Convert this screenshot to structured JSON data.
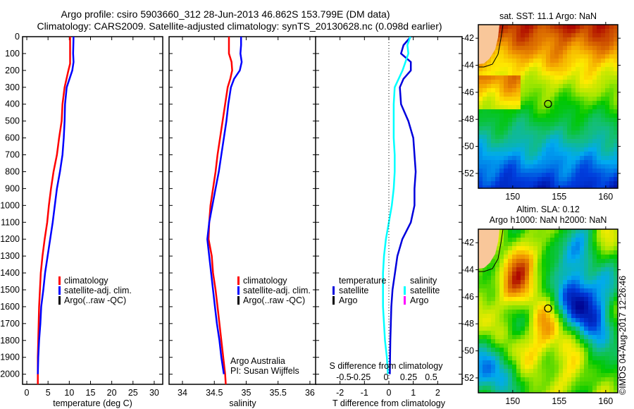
{
  "header": {
    "title_line1": "Argo profile: csiro 5903660_312 28-Jun-2013 46.862S 153.799E (DM data)",
    "title_line2": "Climatology: CARS2009. Satellite-adjusted climatology: synTS_20130628.nc (0.098d earlier)"
  },
  "colors": {
    "climatology": "#ff0000",
    "satellite": "#0000ff",
    "argo": "#000000",
    "temp_diff": "#0000dd",
    "sal_diff": "#00ffff",
    "sal_argo": "#ff00ff",
    "land": "#f9c79a"
  },
  "credits": {
    "org": "Argo Australia",
    "pi": "PI: Susan Wijffels",
    "stamp": "©IMOS 04-Aug-2017 12:26:46"
  },
  "chart_data": [
    {
      "type": "line",
      "name": "temperature-profile",
      "xlabel": "temperature (deg C)",
      "ylabel": "",
      "xlim": [
        -1,
        32
      ],
      "ylim": [
        2060,
        0
      ],
      "xticks": [
        0,
        5,
        10,
        15,
        20,
        25,
        30
      ],
      "yticks": [
        0,
        100,
        200,
        300,
        400,
        500,
        600,
        700,
        800,
        900,
        1000,
        1100,
        1200,
        1300,
        1400,
        1500,
        1600,
        1700,
        1800,
        1900,
        2000
      ],
      "legend": [
        "climatology",
        "satellite-adj. clim.",
        "Argo(..raw -QC)"
      ],
      "legend_placement": "center",
      "series": [
        {
          "name": "climatology",
          "color": "#ff0000",
          "depth": [
            0,
            100,
            160,
            200,
            300,
            400,
            500,
            600,
            700,
            800,
            900,
            1000,
            1100,
            1200,
            1300,
            1400,
            1500,
            1600,
            1700,
            1800,
            1900,
            2000,
            2060
          ],
          "values": [
            10.2,
            10.2,
            10.2,
            9.8,
            8.9,
            8.4,
            8.2,
            7.6,
            7.1,
            6.3,
            5.7,
            5.2,
            4.8,
            4.2,
            3.7,
            3.3,
            3.1,
            2.9,
            2.8,
            2.7,
            2.6,
            2.6,
            2.6
          ]
        },
        {
          "name": "satellite-adj. clim.",
          "color": "#0000ff",
          "depth": [
            0,
            100,
            150,
            200,
            300,
            400,
            500,
            600,
            700,
            800,
            900,
            1000,
            1100,
            1200,
            1300,
            1400,
            1500,
            1600,
            1700,
            1800,
            1900,
            2000
          ],
          "values": [
            11.0,
            10.9,
            11.0,
            10.7,
            9.4,
            9.0,
            8.9,
            8.7,
            8.4,
            7.8,
            7.1,
            6.6,
            6.1,
            5.5,
            4.9,
            4.3,
            3.9,
            3.4,
            3.2,
            2.9,
            2.7,
            2.6
          ]
        }
      ]
    },
    {
      "type": "line",
      "name": "salinity-profile",
      "xlabel": "salinity",
      "xlim": [
        33.79,
        36.1
      ],
      "ylim": [
        2060,
        0
      ],
      "xticks": [
        34,
        34.5,
        35,
        35.5,
        36
      ],
      "legend": [
        "climatology",
        "satellite-adj. clim.",
        "Argo(..raw -QC)"
      ],
      "legend_placement": "center-right",
      "series": [
        {
          "name": "climatology",
          "color": "#ff0000",
          "depth": [
            0,
            50,
            100,
            150,
            200,
            250,
            300,
            400,
            500,
            600,
            700,
            800,
            900,
            1000,
            1100,
            1200,
            1300,
            1400,
            1500,
            1600,
            1700,
            1800,
            1900,
            2000,
            2060
          ],
          "values": [
            34.73,
            34.73,
            34.73,
            34.77,
            34.78,
            34.75,
            34.71,
            34.67,
            34.63,
            34.59,
            34.55,
            34.52,
            34.48,
            34.44,
            34.42,
            34.41,
            34.46,
            34.48,
            34.52,
            34.55,
            34.58,
            34.61,
            34.64,
            34.67,
            34.68
          ]
        },
        {
          "name": "satellite-adj. clim.",
          "color": "#0000ff",
          "depth": [
            0,
            50,
            100,
            150,
            200,
            250,
            300,
            400,
            500,
            600,
            700,
            800,
            900,
            1000,
            1100,
            1200,
            1300,
            1400,
            1500,
            1600,
            1700,
            1800,
            1900,
            2000
          ],
          "values": [
            34.92,
            34.92,
            34.91,
            34.93,
            34.9,
            34.81,
            34.76,
            34.72,
            34.69,
            34.65,
            34.61,
            34.57,
            34.52,
            34.47,
            34.42,
            34.39,
            34.42,
            34.45,
            34.48,
            34.51,
            34.54,
            34.58,
            34.61,
            34.65
          ]
        }
      ]
    },
    {
      "type": "line",
      "name": "difference-profile",
      "xlabel": "T difference from climatology",
      "xlabel_top": "S difference from climatology",
      "xlim": [
        -3,
        3
      ],
      "ylim": [
        2060,
        0
      ],
      "xticks": [
        -2,
        -1,
        0,
        1,
        2
      ],
      "xticks_s": [
        "-0.5",
        "-0.25",
        "0",
        "0.25",
        "0.5"
      ],
      "legend_temperature": {
        "title": "temperature",
        "items": [
          "satellite",
          "Argo"
        ]
      },
      "legend_salinity": {
        "title": "salinity",
        "items": [
          "satellite",
          "Argo"
        ]
      },
      "series": [
        {
          "name": "temperature satellite",
          "color": "#0000dd",
          "unit": "T",
          "depth": [
            0,
            50,
            100,
            150,
            200,
            250,
            300,
            400,
            500,
            600,
            700,
            800,
            900,
            1000,
            1100,
            1200,
            1300,
            1400,
            1500,
            1600,
            1700,
            1800,
            1900,
            2000
          ],
          "values": [
            0.9,
            0.6,
            0.5,
            0.9,
            0.9,
            0.6,
            0.45,
            0.5,
            0.8,
            1.0,
            1.05,
            1.1,
            1.05,
            1.05,
            0.9,
            0.55,
            0.35,
            0.25,
            0.15,
            0.1,
            0.08,
            0.06,
            0.05,
            0.04
          ]
        },
        {
          "name": "salinity satellite",
          "color": "#00ffff",
          "unit": "S",
          "depth": [
            0,
            50,
            100,
            150,
            200,
            250,
            300,
            400,
            500,
            600,
            700,
            800,
            900,
            1000,
            1100,
            1200,
            1300,
            1400,
            1500,
            1600,
            1700,
            1800,
            1900,
            2000
          ],
          "values": [
            0.22,
            0.19,
            0.2,
            0.17,
            0.14,
            0.1,
            0.06,
            0.05,
            0.05,
            0.05,
            0.06,
            0.06,
            0.05,
            0.03,
            0.0,
            -0.03,
            -0.05,
            -0.06,
            -0.06,
            -0.06,
            -0.05,
            -0.04,
            -0.02,
            -0.01
          ]
        }
      ]
    },
    {
      "type": "heatmap",
      "name": "sst-map",
      "title": "sat. SST: 11.1  Argo: NaN",
      "xlim": [
        146.3,
        161.3
      ],
      "ylim": [
        -53.1,
        -41.0
      ],
      "xticks": [
        150,
        155,
        160
      ],
      "yticks": [
        -42,
        -44,
        -46,
        -48,
        -50,
        -52
      ],
      "marker": {
        "lon": 153.799,
        "lat": -46.862
      }
    },
    {
      "type": "heatmap",
      "name": "sla-map",
      "title": "Altim. SLA: 0.12",
      "subtitle": "Argo h1000: NaN h2000: NaN",
      "xlim": [
        146.3,
        161.3
      ],
      "ylim": [
        -53.1,
        -41.0
      ],
      "xticks": [
        150,
        155,
        160
      ],
      "yticks": [
        -42,
        -44,
        -46,
        -48,
        -50,
        -52
      ],
      "marker": {
        "lon": 153.799,
        "lat": -46.862
      }
    }
  ]
}
